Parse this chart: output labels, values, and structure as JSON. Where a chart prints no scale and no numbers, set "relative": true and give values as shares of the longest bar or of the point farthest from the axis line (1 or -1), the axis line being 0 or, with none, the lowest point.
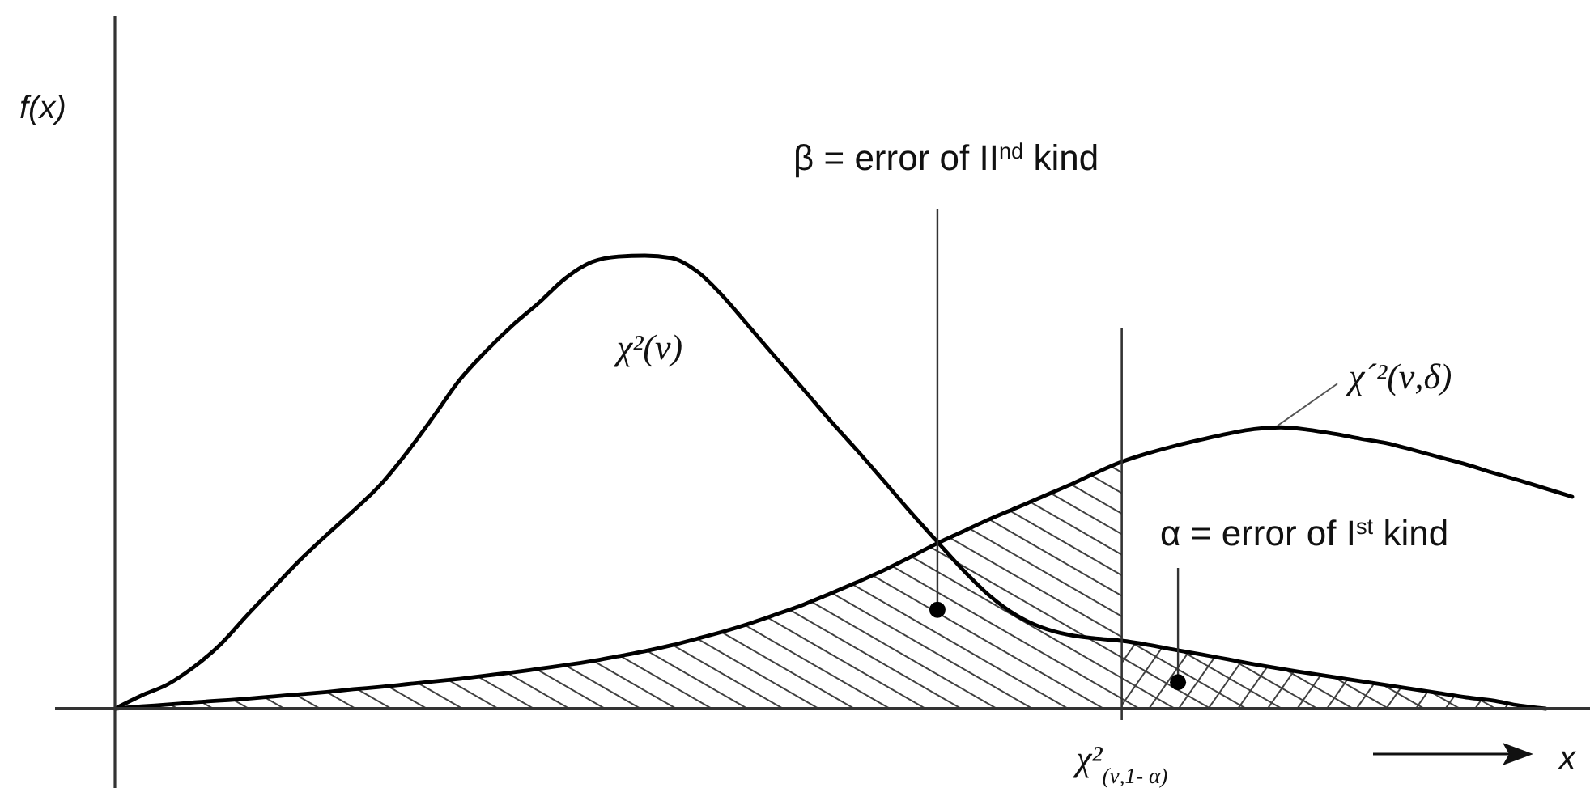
{
  "chart_data": {
    "type": "line",
    "relative": true,
    "xlabel": "x",
    "ylabel": "f(x)",
    "categories": [
      null,
      null,
      null,
      null,
      null,
      null,
      null,
      null,
      null,
      null,
      null,
      null,
      null,
      null,
      null,
      null,
      null,
      null,
      null,
      null,
      null,
      null,
      null,
      null,
      null,
      null,
      null,
      null,
      null,
      null,
      null,
      null,
      null,
      null,
      null,
      null,
      null,
      null,
      null,
      null,
      null,
      null,
      null,
      null,
      null,
      null,
      null,
      null,
      null,
      null,
      null,
      null,
      null,
      null,
      null,
      null
    ],
    "series": [
      {
        "name": "χ²(ν)",
        "color": "#000000",
        "values": [
          0,
          0.029,
          0.054,
          0.093,
          0.143,
          0.207,
          0.268,
          0.329,
          0.384,
          0.437,
          0.493,
          0.564,
          0.643,
          0.725,
          0.789,
          0.846,
          0.896,
          0.95,
          0.986,
          0.998,
          1.0,
          0.995,
          0.964,
          0.907,
          0.839,
          0.771,
          0.704,
          0.636,
          0.571,
          0.504,
          0.436,
          0.371,
          0.307,
          0.25,
          0.207,
          0.179,
          0.163,
          0.155,
          0.15,
          0.141,
          0.13,
          0.12,
          0.109,
          0.098,
          0.088,
          0.079,
          0.07,
          0.061,
          0.052,
          0.043,
          0.034,
          0.025,
          0.018,
          0.007,
          0,
          null
        ]
      },
      {
        "name": "χ´²(ν,δ)",
        "color": "#000000",
        "values": [
          0,
          0.005,
          0.009,
          0.014,
          0.018,
          0.022,
          0.027,
          0.032,
          0.037,
          0.043,
          0.048,
          0.054,
          0.06,
          0.066,
          0.073,
          0.08,
          0.088,
          0.096,
          0.105,
          0.116,
          0.127,
          0.14,
          0.155,
          0.171,
          0.189,
          0.209,
          0.23,
          0.254,
          0.279,
          0.305,
          0.334,
          0.364,
          0.391,
          0.418,
          0.443,
          0.468,
          0.493,
          0.52,
          0.545,
          0.564,
          0.58,
          0.594,
          0.607,
          0.617,
          0.621,
          0.616,
          0.607,
          0.596,
          0.586,
          0.571,
          0.555,
          0.539,
          0.521,
          0.504,
          0.486,
          0.468
        ]
      },
      {
        "type": "area",
        "color": "#404040",
        "values": [
          0,
          0.005,
          0.009,
          0.014,
          0.018,
          0.022,
          0.027,
          0.032,
          0.037,
          0.043,
          0.048,
          0.054,
          0.06,
          0.066,
          0.073,
          0.08,
          0.088,
          0.096,
          0.105,
          0.116,
          0.127,
          0.14,
          0.155,
          0.171,
          0.189,
          0.209,
          0.23,
          0.254,
          0.279,
          0.305,
          0.334,
          0.364,
          0.391,
          0.418,
          0.443,
          0.468,
          0.493,
          0.52,
          0.545,
          null,
          null,
          null,
          null,
          null,
          null,
          null,
          null,
          null,
          null,
          null,
          null,
          null,
          null,
          null,
          null,
          null
        ]
      },
      {
        "type": "area",
        "color": "#404040",
        "values": [
          null,
          null,
          null,
          null,
          null,
          null,
          null,
          null,
          null,
          null,
          null,
          null,
          null,
          null,
          null,
          null,
          null,
          null,
          null,
          null,
          null,
          null,
          null,
          null,
          null,
          null,
          null,
          null,
          null,
          null,
          null,
          null,
          null,
          null,
          null,
          null,
          null,
          null,
          0.15,
          0.141,
          0.13,
          0.12,
          0.109,
          0.098,
          0.088,
          0.079,
          0.07,
          0.061,
          0.052,
          0.043,
          0.034,
          0.025,
          0.018,
          0.007,
          0,
          null
        ]
      }
    ],
    "annotations": [
      "β = error of II$^{nd}$ kind",
      "α = error of I$^{st}$ kind",
      "χ²$_{(ν,1- α)}$"
    ]
  }
}
